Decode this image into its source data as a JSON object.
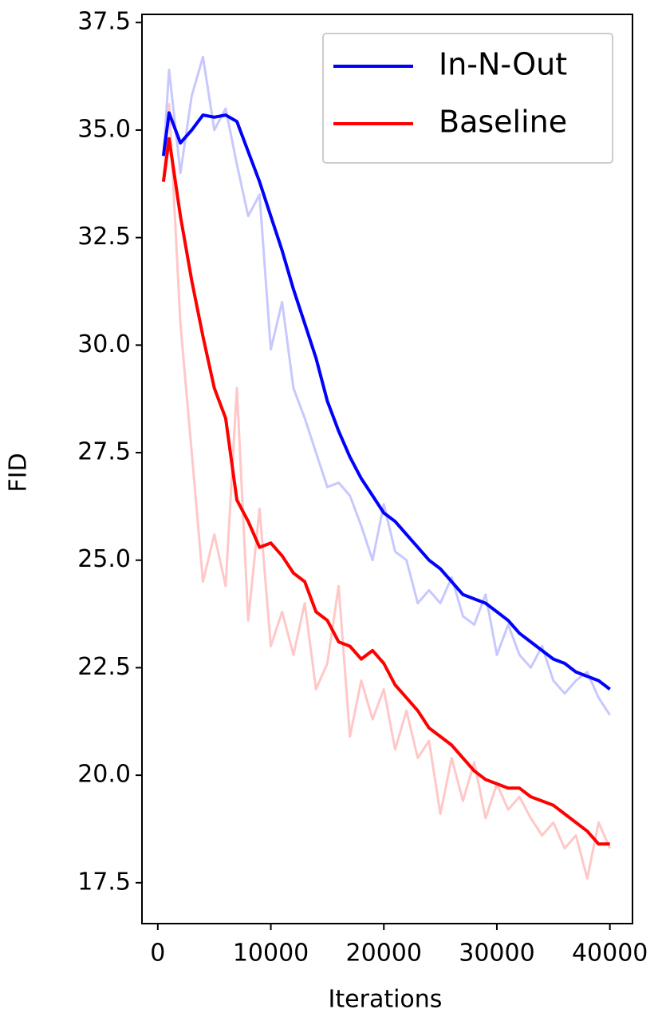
{
  "chart_data": {
    "type": "line",
    "xlabel": "Iterations",
    "ylabel": "FID",
    "x": [
      500,
      1000,
      2000,
      3000,
      4000,
      5000,
      6000,
      7000,
      8000,
      9000,
      10000,
      11000,
      12000,
      13000,
      14000,
      15000,
      16000,
      17000,
      18000,
      19000,
      20000,
      21000,
      22000,
      23000,
      24000,
      25000,
      26000,
      27000,
      28000,
      29000,
      30000,
      31000,
      32000,
      33000,
      34000,
      35000,
      36000,
      37000,
      38000,
      39000,
      40000
    ],
    "series": [
      {
        "color": "#c8c8ff",
        "values": [
          34.4,
          36.4,
          34.0,
          35.8,
          36.7,
          35.0,
          35.5,
          34.2,
          33.0,
          33.5,
          29.9,
          31.0,
          29.0,
          28.3,
          27.5,
          26.7,
          26.8,
          26.5,
          25.8,
          25.0,
          26.3,
          25.2,
          25.0,
          24.0,
          24.3,
          24.0,
          24.6,
          23.7,
          23.5,
          24.2,
          22.8,
          23.5,
          22.8,
          22.5,
          23.0,
          22.2,
          21.9,
          22.2,
          22.4,
          21.8,
          21.4
        ]
      },
      {
        "color": "#ffc8c8",
        "values": [
          33.8,
          35.6,
          30.5,
          27.5,
          24.5,
          25.6,
          24.4,
          29.0,
          23.6,
          26.2,
          23.0,
          23.8,
          22.8,
          24.0,
          22.0,
          22.6,
          24.4,
          20.9,
          22.2,
          21.3,
          22.0,
          20.6,
          21.5,
          20.4,
          20.8,
          19.1,
          20.4,
          19.4,
          20.3,
          19.0,
          19.8,
          19.2,
          19.5,
          19.0,
          18.6,
          18.9,
          18.3,
          18.6,
          17.6,
          18.9,
          18.3
        ]
      },
      {
        "name": "In-N-Out",
        "color": "#0000ff",
        "values": [
          34.4,
          35.4,
          34.7,
          35.0,
          35.35,
          35.3,
          35.35,
          35.2,
          34.5,
          33.8,
          33.0,
          32.2,
          31.3,
          30.5,
          29.7,
          28.7,
          28.0,
          27.4,
          26.9,
          26.5,
          26.1,
          25.9,
          25.6,
          25.3,
          25.0,
          24.8,
          24.5,
          24.2,
          24.1,
          24.0,
          23.8,
          23.6,
          23.3,
          23.1,
          22.9,
          22.7,
          22.6,
          22.4,
          22.3,
          22.2,
          22.0
        ]
      },
      {
        "name": "Baseline",
        "color": "#ff0000",
        "values": [
          33.8,
          34.8,
          33.0,
          31.5,
          30.2,
          29.0,
          28.3,
          26.4,
          25.9,
          25.3,
          25.4,
          25.1,
          24.7,
          24.5,
          23.8,
          23.6,
          23.1,
          23.0,
          22.7,
          22.9,
          22.6,
          22.1,
          21.8,
          21.5,
          21.1,
          20.9,
          20.7,
          20.4,
          20.1,
          19.9,
          19.8,
          19.7,
          19.7,
          19.5,
          19.4,
          19.3,
          19.1,
          18.9,
          18.7,
          18.4,
          18.4
        ]
      }
    ],
    "xlim": [
      -1400,
      42000
    ],
    "xticks": [
      0,
      10000,
      20000,
      30000,
      40000
    ],
    "ylim": [
      16.55,
      37.69
    ],
    "yticks": [
      17.5,
      {
        "value": 20,
        "label": "20.0"
      },
      22.5,
      {
        "value": 25,
        "label": "25.0"
      },
      27.5,
      {
        "value": 30,
        "label": "30.0"
      },
      32.5,
      {
        "value": 35,
        "label": "35.0"
      },
      37.5
    ],
    "legend": "upper right",
    "grid": false
  }
}
